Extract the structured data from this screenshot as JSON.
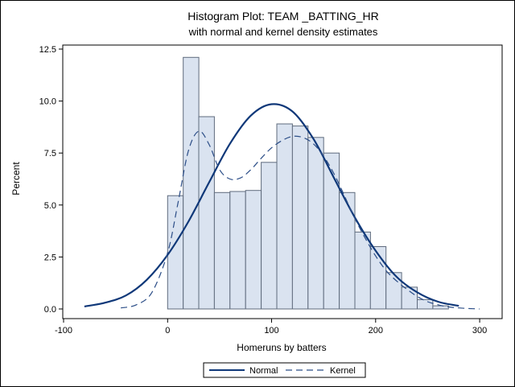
{
  "chart_data": {
    "type": "bar",
    "title": "Histogram Plot: TEAM _BATTING_HR",
    "subtitle": "with normal and kernel density estimates",
    "xlabel": "Homeruns by batters",
    "ylabel": "Percent",
    "xlim": [
      -100,
      310
    ],
    "ylim": [
      0,
      12.5
    ],
    "x_ticks": [
      -100,
      0,
      100,
      200,
      300
    ],
    "y_ticks": [
      0.0,
      2.5,
      5.0,
      7.5,
      10.0,
      12.5
    ],
    "y_tick_labels": [
      "0.0",
      "2.5",
      "5.0",
      "7.5",
      "10.0",
      "12.5"
    ],
    "x_tick_labels": [
      "-100",
      "0",
      "100",
      "200",
      "300"
    ],
    "grid": false,
    "bin_width": 15,
    "bins": [
      {
        "start": 0,
        "value": 5.45
      },
      {
        "start": 15,
        "value": 12.1
      },
      {
        "start": 30,
        "value": 9.25
      },
      {
        "start": 45,
        "value": 5.6
      },
      {
        "start": 60,
        "value": 5.65
      },
      {
        "start": 75,
        "value": 5.7
      },
      {
        "start": 90,
        "value": 7.05
      },
      {
        "start": 105,
        "value": 8.9
      },
      {
        "start": 120,
        "value": 8.8
      },
      {
        "start": 135,
        "value": 8.25
      },
      {
        "start": 150,
        "value": 7.5
      },
      {
        "start": 165,
        "value": 5.6
      },
      {
        "start": 180,
        "value": 3.7
      },
      {
        "start": 195,
        "value": 3.0
      },
      {
        "start": 210,
        "value": 1.75
      },
      {
        "start": 225,
        "value": 1.05
      },
      {
        "start": 240,
        "value": 0.45
      },
      {
        "start": 255,
        "value": 0.15
      },
      {
        "start": 270,
        "value": 0.0
      }
    ],
    "series": [
      {
        "name": "Normal",
        "style": "solid",
        "x": [
          -80,
          -60,
          -40,
          -20,
          0,
          20,
          40,
          60,
          80,
          100,
          120,
          140,
          160,
          180,
          200,
          220,
          240,
          260,
          280
        ],
        "values": [
          0.12,
          0.3,
          0.65,
          1.4,
          2.6,
          4.2,
          6.1,
          7.95,
          9.3,
          9.85,
          9.5,
          8.2,
          6.3,
          4.4,
          2.8,
          1.55,
          0.8,
          0.35,
          0.15
        ]
      },
      {
        "name": "Kernel",
        "style": "dashed",
        "x": [
          -45,
          -30,
          -15,
          0,
          10,
          20,
          30,
          40,
          50,
          60,
          70,
          80,
          90,
          100,
          110,
          120,
          130,
          140,
          150,
          160,
          170,
          180,
          190,
          200,
          210,
          220,
          230,
          240,
          250,
          260,
          270,
          280,
          290,
          300
        ],
        "values": [
          0.05,
          0.2,
          0.8,
          2.7,
          5.1,
          7.6,
          8.55,
          7.9,
          6.7,
          6.25,
          6.3,
          6.7,
          7.25,
          7.75,
          8.1,
          8.3,
          8.25,
          7.95,
          7.35,
          6.5,
          5.45,
          4.35,
          3.4,
          2.55,
          1.85,
          1.35,
          0.95,
          0.6,
          0.35,
          0.2,
          0.1,
          0.05,
          0.02,
          0.0
        ]
      }
    ],
    "legend_placement": "bottom-center",
    "colors": {
      "bar_fill": "#dae3f0",
      "bar_edge": "#5f6b7d",
      "normal_line": "#0f3879",
      "kernel_line": "#2b4d87",
      "axis": "#000000"
    }
  }
}
